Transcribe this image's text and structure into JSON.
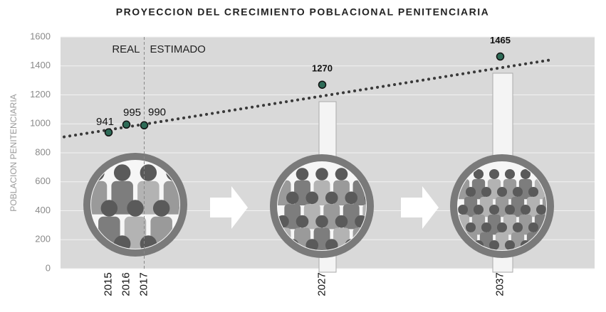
{
  "chart_data": {
    "type": "scatter",
    "title": "PROYECCION DEL CRECIMIENTO POBLACIONAL PENITENCIARIA",
    "y_label": "POBLACION PENITENCIARIA",
    "annotations": [
      "REAL",
      "ESTIMADO"
    ],
    "x": [
      2015,
      2016,
      2017,
      2027,
      2037
    ],
    "values": [
      941,
      995,
      990,
      1270,
      1465
    ],
    "color": "#2e6b57",
    "trendline": {
      "x": [
        2012.5,
        2040
      ],
      "values": [
        910,
        1445
      ],
      "color": "#3a3a3a"
    },
    "xlim": [
      2012.3,
      2042.3
    ],
    "xticks": [
      2015,
      2016,
      2017,
      2027,
      2037
    ],
    "ylim": [
      0,
      1600
    ],
    "yticks": [
      0,
      200,
      400,
      600,
      800,
      1000,
      1200,
      1400,
      1600
    ],
    "grid": true
  }
}
